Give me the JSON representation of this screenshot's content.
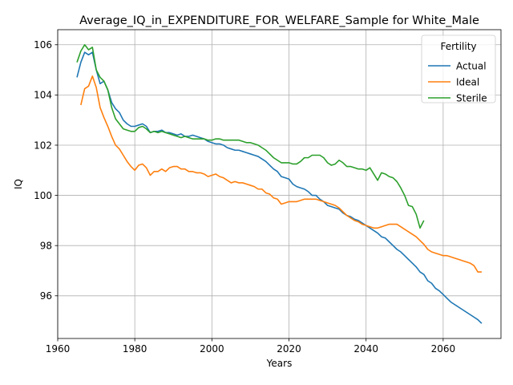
{
  "chart_data": {
    "type": "line",
    "title": "Average_IQ_in_EXPENDITURE_FOR_WELFARE_Sample for White_Male",
    "xlabel": "Years",
    "ylabel": "IQ",
    "xlim": [
      1960,
      2075
    ],
    "ylim": [
      94.3,
      106.6
    ],
    "xticks": [
      1960,
      1980,
      2000,
      2020,
      2040,
      2060
    ],
    "yticks": [
      96,
      98,
      100,
      102,
      104,
      106
    ],
    "grid": true,
    "legend": {
      "title": "Fertility",
      "placement": "top-right"
    },
    "series": [
      {
        "name": "Actual",
        "color": "#1f77b4",
        "points": [
          [
            1965,
            104.7
          ],
          [
            1966,
            105.3
          ],
          [
            1967,
            105.7
          ],
          [
            1968,
            105.6
          ],
          [
            1969,
            105.7
          ],
          [
            1970,
            105.0
          ],
          [
            1971,
            104.45
          ],
          [
            1972,
            104.55
          ],
          [
            1973,
            104.2
          ],
          [
            1974,
            103.7
          ],
          [
            1975,
            103.45
          ],
          [
            1976,
            103.3
          ],
          [
            1977,
            103.0
          ],
          [
            1978,
            102.85
          ],
          [
            1979,
            102.75
          ],
          [
            1980,
            102.75
          ],
          [
            1981,
            102.8
          ],
          [
            1982,
            102.85
          ],
          [
            1983,
            102.75
          ],
          [
            1984,
            102.5
          ],
          [
            1985,
            102.55
          ],
          [
            1986,
            102.55
          ],
          [
            1987,
            102.6
          ],
          [
            1988,
            102.5
          ],
          [
            1989,
            102.5
          ],
          [
            1990,
            102.45
          ],
          [
            1991,
            102.4
          ],
          [
            1992,
            102.45
          ],
          [
            1993,
            102.35
          ],
          [
            1994,
            102.35
          ],
          [
            1995,
            102.4
          ],
          [
            1996,
            102.35
          ],
          [
            1997,
            102.3
          ],
          [
            1998,
            102.25
          ],
          [
            1999,
            102.15
          ],
          [
            2000,
            102.1
          ],
          [
            2001,
            102.05
          ],
          [
            2002,
            102.05
          ],
          [
            2003,
            102.0
          ],
          [
            2004,
            101.9
          ],
          [
            2005,
            101.85
          ],
          [
            2006,
            101.8
          ],
          [
            2007,
            101.8
          ],
          [
            2008,
            101.75
          ],
          [
            2009,
            101.7
          ],
          [
            2010,
            101.65
          ],
          [
            2011,
            101.6
          ],
          [
            2012,
            101.55
          ],
          [
            2013,
            101.45
          ],
          [
            2014,
            101.35
          ],
          [
            2015,
            101.2
          ],
          [
            2016,
            101.05
          ],
          [
            2017,
            100.95
          ],
          [
            2018,
            100.75
          ],
          [
            2019,
            100.7
          ],
          [
            2020,
            100.65
          ],
          [
            2021,
            100.45
          ],
          [
            2022,
            100.35
          ],
          [
            2023,
            100.3
          ],
          [
            2024,
            100.25
          ],
          [
            2025,
            100.15
          ],
          [
            2026,
            100.0
          ],
          [
            2027,
            100.0
          ],
          [
            2028,
            99.85
          ],
          [
            2029,
            99.75
          ],
          [
            2030,
            99.6
          ],
          [
            2031,
            99.55
          ],
          [
            2032,
            99.5
          ],
          [
            2033,
            99.45
          ],
          [
            2034,
            99.3
          ],
          [
            2035,
            99.2
          ],
          [
            2036,
            99.15
          ],
          [
            2037,
            99.05
          ],
          [
            2038,
            99.0
          ],
          [
            2039,
            98.9
          ],
          [
            2040,
            98.8
          ],
          [
            2041,
            98.7
          ],
          [
            2042,
            98.6
          ],
          [
            2043,
            98.5
          ],
          [
            2044,
            98.35
          ],
          [
            2045,
            98.3
          ],
          [
            2046,
            98.15
          ],
          [
            2047,
            98.0
          ],
          [
            2048,
            97.85
          ],
          [
            2049,
            97.75
          ],
          [
            2050,
            97.6
          ],
          [
            2051,
            97.45
          ],
          [
            2052,
            97.3
          ],
          [
            2053,
            97.15
          ],
          [
            2054,
            96.95
          ],
          [
            2055,
            96.85
          ],
          [
            2056,
            96.6
          ],
          [
            2057,
            96.5
          ],
          [
            2058,
            96.3
          ],
          [
            2059,
            96.2
          ],
          [
            2060,
            96.05
          ],
          [
            2061,
            95.9
          ],
          [
            2062,
            95.75
          ],
          [
            2063,
            95.65
          ],
          [
            2064,
            95.55
          ],
          [
            2065,
            95.45
          ],
          [
            2066,
            95.35
          ],
          [
            2067,
            95.25
          ],
          [
            2068,
            95.15
          ],
          [
            2069,
            95.05
          ],
          [
            2070,
            94.9
          ]
        ]
      },
      {
        "name": "Ideal",
        "color": "#ff7f0e",
        "points": [
          [
            1966,
            103.6
          ],
          [
            1967,
            104.25
          ],
          [
            1968,
            104.35
          ],
          [
            1969,
            104.75
          ],
          [
            1970,
            104.3
          ],
          [
            1971,
            103.5
          ],
          [
            1972,
            103.1
          ],
          [
            1973,
            102.75
          ],
          [
            1974,
            102.35
          ],
          [
            1975,
            102.0
          ],
          [
            1976,
            101.85
          ],
          [
            1977,
            101.6
          ],
          [
            1978,
            101.35
          ],
          [
            1979,
            101.15
          ],
          [
            1980,
            101.0
          ],
          [
            1981,
            101.2
          ],
          [
            1982,
            101.25
          ],
          [
            1983,
            101.1
          ],
          [
            1984,
            100.8
          ],
          [
            1985,
            100.95
          ],
          [
            1986,
            100.95
          ],
          [
            1987,
            101.05
          ],
          [
            1988,
            100.95
          ],
          [
            1989,
            101.1
          ],
          [
            1990,
            101.15
          ],
          [
            1991,
            101.15
          ],
          [
            1992,
            101.05
          ],
          [
            1993,
            101.05
          ],
          [
            1994,
            100.95
          ],
          [
            1995,
            100.95
          ],
          [
            1996,
            100.9
          ],
          [
            1997,
            100.9
          ],
          [
            1998,
            100.85
          ],
          [
            1999,
            100.75
          ],
          [
            2000,
            100.8
          ],
          [
            2001,
            100.85
          ],
          [
            2002,
            100.75
          ],
          [
            2003,
            100.7
          ],
          [
            2004,
            100.6
          ],
          [
            2005,
            100.5
          ],
          [
            2006,
            100.55
          ],
          [
            2007,
            100.5
          ],
          [
            2008,
            100.5
          ],
          [
            2009,
            100.45
          ],
          [
            2010,
            100.4
          ],
          [
            2011,
            100.35
          ],
          [
            2012,
            100.25
          ],
          [
            2013,
            100.25
          ],
          [
            2014,
            100.1
          ],
          [
            2015,
            100.05
          ],
          [
            2016,
            99.9
          ],
          [
            2017,
            99.85
          ],
          [
            2018,
            99.65
          ],
          [
            2019,
            99.7
          ],
          [
            2020,
            99.75
          ],
          [
            2021,
            99.75
          ],
          [
            2022,
            99.75
          ],
          [
            2023,
            99.8
          ],
          [
            2024,
            99.85
          ],
          [
            2025,
            99.85
          ],
          [
            2026,
            99.85
          ],
          [
            2027,
            99.85
          ],
          [
            2028,
            99.8
          ],
          [
            2029,
            99.75
          ],
          [
            2030,
            99.7
          ],
          [
            2031,
            99.65
          ],
          [
            2032,
            99.6
          ],
          [
            2033,
            99.5
          ],
          [
            2034,
            99.35
          ],
          [
            2035,
            99.2
          ],
          [
            2036,
            99.1
          ],
          [
            2037,
            99.0
          ],
          [
            2038,
            98.95
          ],
          [
            2039,
            98.85
          ],
          [
            2040,
            98.8
          ],
          [
            2041,
            98.75
          ],
          [
            2042,
            98.7
          ],
          [
            2043,
            98.7
          ],
          [
            2044,
            98.75
          ],
          [
            2045,
            98.8
          ],
          [
            2046,
            98.85
          ],
          [
            2047,
            98.85
          ],
          [
            2048,
            98.85
          ],
          [
            2049,
            98.75
          ],
          [
            2050,
            98.65
          ],
          [
            2051,
            98.55
          ],
          [
            2052,
            98.45
          ],
          [
            2053,
            98.35
          ],
          [
            2054,
            98.2
          ],
          [
            2055,
            98.05
          ],
          [
            2056,
            97.85
          ],
          [
            2057,
            97.75
          ],
          [
            2058,
            97.7
          ],
          [
            2059,
            97.65
          ],
          [
            2060,
            97.6
          ],
          [
            2061,
            97.6
          ],
          [
            2062,
            97.55
          ],
          [
            2063,
            97.5
          ],
          [
            2064,
            97.45
          ],
          [
            2065,
            97.4
          ],
          [
            2066,
            97.35
          ],
          [
            2067,
            97.3
          ],
          [
            2068,
            97.2
          ],
          [
            2069,
            96.95
          ],
          [
            2070,
            96.95
          ]
        ]
      },
      {
        "name": "Sterile",
        "color": "#2ca02c",
        "points": [
          [
            1965,
            105.3
          ],
          [
            1966,
            105.75
          ],
          [
            1967,
            106.0
          ],
          [
            1968,
            105.8
          ],
          [
            1969,
            105.9
          ],
          [
            1970,
            105.0
          ],
          [
            1971,
            104.7
          ],
          [
            1972,
            104.55
          ],
          [
            1973,
            104.2
          ],
          [
            1974,
            103.5
          ],
          [
            1975,
            103.05
          ],
          [
            1976,
            102.85
          ],
          [
            1977,
            102.65
          ],
          [
            1978,
            102.6
          ],
          [
            1979,
            102.55
          ],
          [
            1980,
            102.55
          ],
          [
            1981,
            102.7
          ],
          [
            1982,
            102.75
          ],
          [
            1983,
            102.65
          ],
          [
            1984,
            102.5
          ],
          [
            1985,
            102.55
          ],
          [
            1986,
            102.5
          ],
          [
            1987,
            102.55
          ],
          [
            1988,
            102.5
          ],
          [
            1989,
            102.45
          ],
          [
            1990,
            102.4
          ],
          [
            1991,
            102.35
          ],
          [
            1992,
            102.3
          ],
          [
            1993,
            102.35
          ],
          [
            1994,
            102.3
          ],
          [
            1995,
            102.25
          ],
          [
            1996,
            102.25
          ],
          [
            1997,
            102.25
          ],
          [
            1998,
            102.25
          ],
          [
            1999,
            102.2
          ],
          [
            2000,
            102.2
          ],
          [
            2001,
            102.25
          ],
          [
            2002,
            102.25
          ],
          [
            2003,
            102.2
          ],
          [
            2004,
            102.2
          ],
          [
            2005,
            102.2
          ],
          [
            2006,
            102.2
          ],
          [
            2007,
            102.2
          ],
          [
            2008,
            102.15
          ],
          [
            2009,
            102.1
          ],
          [
            2010,
            102.1
          ],
          [
            2011,
            102.05
          ],
          [
            2012,
            102.0
          ],
          [
            2013,
            101.9
          ],
          [
            2014,
            101.8
          ],
          [
            2015,
            101.65
          ],
          [
            2016,
            101.5
          ],
          [
            2017,
            101.4
          ],
          [
            2018,
            101.3
          ],
          [
            2019,
            101.3
          ],
          [
            2020,
            101.3
          ],
          [
            2021,
            101.25
          ],
          [
            2022,
            101.25
          ],
          [
            2023,
            101.35
          ],
          [
            2024,
            101.5
          ],
          [
            2025,
            101.5
          ],
          [
            2026,
            101.6
          ],
          [
            2027,
            101.6
          ],
          [
            2028,
            101.6
          ],
          [
            2029,
            101.5
          ],
          [
            2030,
            101.3
          ],
          [
            2031,
            101.2
          ],
          [
            2032,
            101.25
          ],
          [
            2033,
            101.4
          ],
          [
            2034,
            101.3
          ],
          [
            2035,
            101.15
          ],
          [
            2036,
            101.15
          ],
          [
            2037,
            101.1
          ],
          [
            2038,
            101.05
          ],
          [
            2039,
            101.05
          ],
          [
            2040,
            101.0
          ],
          [
            2041,
            101.1
          ],
          [
            2042,
            100.85
          ],
          [
            2043,
            100.6
          ],
          [
            2044,
            100.9
          ],
          [
            2045,
            100.85
          ],
          [
            2046,
            100.75
          ],
          [
            2047,
            100.7
          ],
          [
            2048,
            100.55
          ],
          [
            2049,
            100.3
          ],
          [
            2050,
            100.0
          ],
          [
            2051,
            99.6
          ],
          [
            2052,
            99.55
          ],
          [
            2053,
            99.25
          ],
          [
            2054,
            98.7
          ],
          [
            2055,
            99.0
          ]
        ]
      }
    ]
  }
}
